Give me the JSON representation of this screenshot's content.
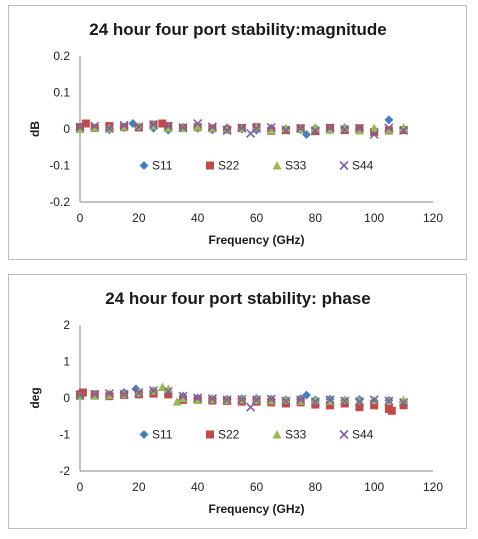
{
  "chart_data": [
    {
      "type": "scatter",
      "title": "24 hour four port stability:magnitude",
      "xlabel": "Frequency (GHz)",
      "ylabel": "dB",
      "xlim": [
        0,
        120
      ],
      "ylim": [
        -0.2,
        0.2
      ],
      "xticks": [
        "0",
        "20",
        "40",
        "60",
        "80",
        "100",
        "120"
      ],
      "yticks": [
        "-0.2",
        "-0.1",
        "0",
        "0.1",
        "0.2"
      ],
      "grid": false,
      "legend_placement": "inside-bottom",
      "series": [
        {
          "name": "S11",
          "marker": "diamond",
          "color": "#4a7ebb",
          "x": [
            0,
            5,
            10,
            15,
            18,
            20,
            25,
            30,
            35,
            40,
            45,
            50,
            55,
            60,
            65,
            70,
            75,
            77,
            80,
            85,
            90,
            95,
            100,
            105,
            110
          ],
          "y": [
            0,
            0.003,
            -0.002,
            0.004,
            0.015,
            0.005,
            0.002,
            -0.003,
            0.004,
            0.002,
            -0.002,
            0.003,
            0,
            -0.003,
            0.002,
            0,
            -0.002,
            -0.015,
            0.002,
            -0.003,
            0.003,
            0,
            -0.002,
            0.025,
            0
          ]
        },
        {
          "name": "S22",
          "marker": "square",
          "color": "#be4b48",
          "x": [
            0,
            2,
            5,
            10,
            15,
            20,
            25,
            28,
            30,
            35,
            40,
            45,
            50,
            55,
            60,
            65,
            70,
            75,
            80,
            85,
            90,
            95,
            100,
            105,
            110
          ],
          "y": [
            0.005,
            0.015,
            0.003,
            0.008,
            0.005,
            0.004,
            0.012,
            0.015,
            0.008,
            0.003,
            0.005,
            0.002,
            -0.002,
            0.003,
            0.005,
            -0.005,
            -0.003,
            0.002,
            -0.006,
            0.003,
            -0.003,
            0.002,
            -0.008,
            -0.004,
            -0.003
          ]
        },
        {
          "name": "S33",
          "marker": "triangle",
          "color": "#98b954",
          "x": [
            0,
            5,
            10,
            15,
            20,
            25,
            30,
            35,
            40,
            45,
            50,
            55,
            60,
            65,
            70,
            75,
            80,
            85,
            90,
            95,
            100,
            105,
            110
          ],
          "y": [
            0,
            0.004,
            0.002,
            0.006,
            0.008,
            0.01,
            0.003,
            0.002,
            0.006,
            0.003,
            -0.002,
            0.002,
            0.004,
            -0.003,
            0.002,
            0,
            0.004,
            -0.002,
            0.002,
            -0.004,
            0.003,
            -0.002,
            0.004
          ]
        },
        {
          "name": "S44",
          "marker": "x",
          "color": "#7d60a0",
          "x": [
            0,
            5,
            10,
            15,
            20,
            25,
            30,
            35,
            40,
            45,
            50,
            55,
            58,
            60,
            65,
            70,
            75,
            80,
            85,
            90,
            95,
            100,
            105,
            110
          ],
          "y": [
            0.005,
            0.008,
            0.002,
            0.01,
            0.006,
            0.012,
            0.008,
            0.004,
            0.015,
            0.006,
            -0.004,
            0.003,
            -0.012,
            0.002,
            0.004,
            -0.003,
            0.002,
            -0.005,
            0.003,
            -0.002,
            0.002,
            -0.015,
            0.003,
            -0.004
          ]
        }
      ]
    },
    {
      "type": "scatter",
      "title": "24 hour four port stability: phase",
      "xlabel": "Frequency (GHz)",
      "ylabel": "deg",
      "xlim": [
        0,
        120
      ],
      "ylim": [
        -2,
        2
      ],
      "xticks": [
        "0",
        "20",
        "40",
        "60",
        "80",
        "100",
        "120"
      ],
      "yticks": [
        "-2",
        "-1",
        "0",
        "1",
        "2"
      ],
      "grid": false,
      "legend_placement": "inside-bottom",
      "series": [
        {
          "name": "S11",
          "marker": "diamond",
          "color": "#4a7ebb",
          "x": [
            0,
            5,
            10,
            15,
            19,
            20,
            25,
            30,
            35,
            40,
            45,
            50,
            55,
            60,
            65,
            70,
            75,
            77,
            80,
            85,
            90,
            95,
            100,
            105,
            110
          ],
          "y": [
            0.05,
            0.08,
            0.1,
            0.15,
            0.25,
            0.15,
            0.2,
            0.15,
            0.05,
            0,
            -0.02,
            -0.03,
            -0.02,
            -0.02,
            -0.03,
            -0.05,
            -0.02,
            0.08,
            -0.05,
            -0.03,
            -0.06,
            -0.04,
            -0.08,
            -0.06,
            -0.1
          ]
        },
        {
          "name": "S22",
          "marker": "square",
          "color": "#be4b48",
          "x": [
            0,
            1,
            5,
            10,
            15,
            20,
            25,
            30,
            35,
            40,
            45,
            50,
            55,
            60,
            65,
            70,
            75,
            80,
            85,
            90,
            95,
            100,
            105,
            106,
            110
          ],
          "y": [
            0.1,
            0.15,
            0.1,
            0.05,
            0.08,
            0.1,
            0.12,
            0.1,
            -0.05,
            -0.05,
            -0.07,
            -0.08,
            -0.1,
            -0.1,
            -0.12,
            -0.15,
            -0.12,
            -0.18,
            -0.2,
            -0.15,
            -0.25,
            -0.2,
            -0.3,
            -0.35,
            -0.2
          ]
        },
        {
          "name": "S33",
          "marker": "triangle",
          "color": "#98b954",
          "x": [
            0,
            5,
            10,
            15,
            20,
            25,
            28,
            30,
            33,
            35,
            40,
            45,
            50,
            55,
            60,
            65,
            70,
            75,
            80,
            85,
            90,
            95,
            100,
            105,
            110
          ],
          "y": [
            0.05,
            0.06,
            0.08,
            0.1,
            0.15,
            0.2,
            0.3,
            0.25,
            -0.1,
            0,
            -0.05,
            -0.03,
            -0.05,
            -0.04,
            -0.05,
            -0.06,
            -0.05,
            -0.08,
            -0.06,
            -0.08,
            -0.05,
            -0.07,
            -0.06,
            -0.08,
            -0.05
          ]
        },
        {
          "name": "S44",
          "marker": "x",
          "color": "#7d60a0",
          "x": [
            0,
            5,
            10,
            15,
            20,
            25,
            30,
            35,
            40,
            45,
            50,
            55,
            58,
            60,
            65,
            70,
            75,
            80,
            85,
            90,
            95,
            100,
            105,
            110
          ],
          "y": [
            0.08,
            0.1,
            0.12,
            0.1,
            0.15,
            0.2,
            0.18,
            0.05,
            0,
            -0.02,
            -0.05,
            -0.04,
            -0.25,
            -0.05,
            -0.03,
            -0.08,
            -0.05,
            -0.1,
            -0.05,
            -0.08,
            -0.1,
            -0.05,
            -0.08,
            -0.12
          ]
        }
      ]
    }
  ]
}
